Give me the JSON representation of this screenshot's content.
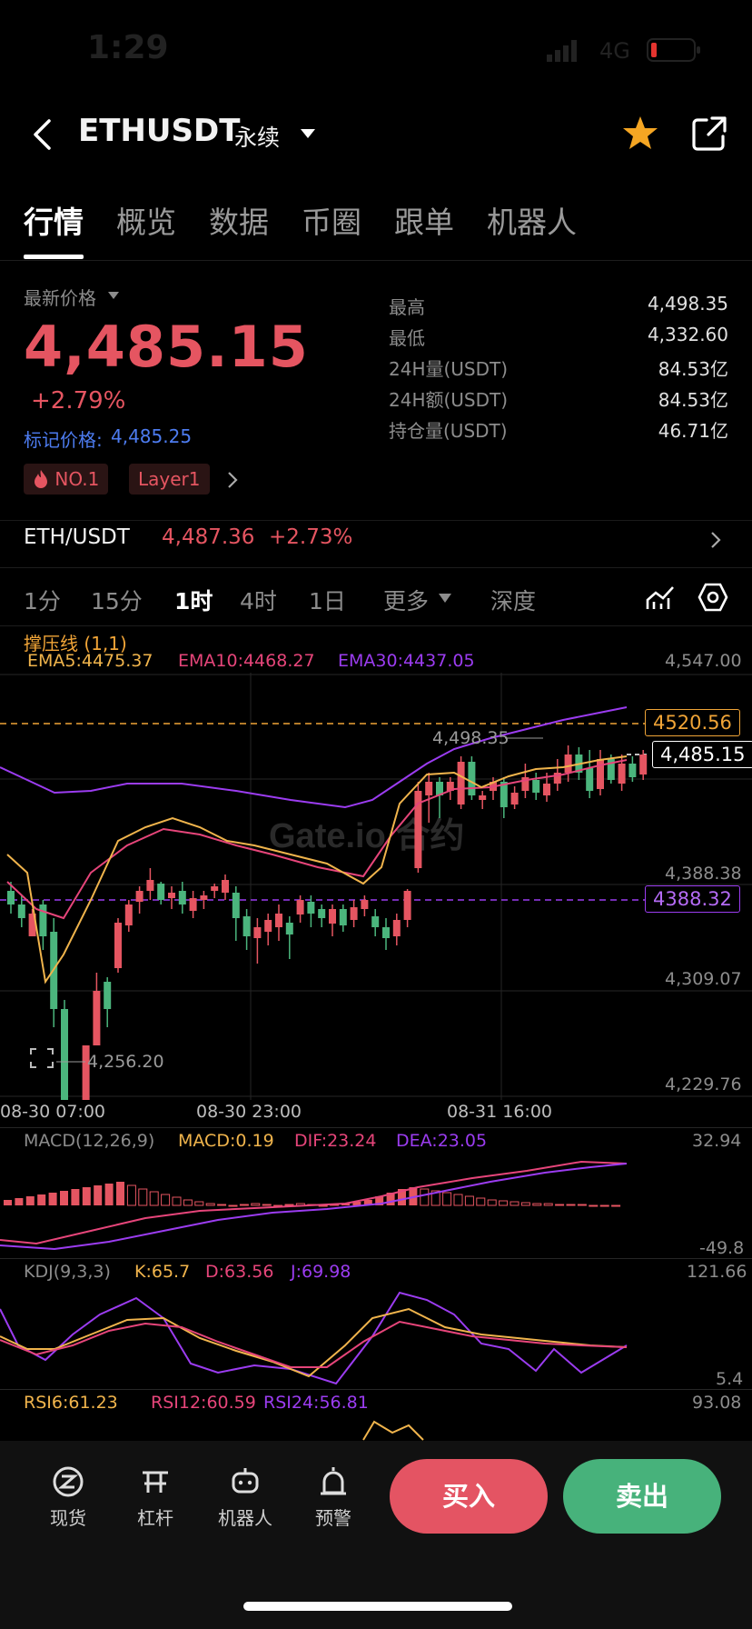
{
  "status": {
    "time": "1:29",
    "network": "4G"
  },
  "header": {
    "pair": "ETHUSDT",
    "contract_type": "永续"
  },
  "tabs": [
    "行情",
    "概览",
    "数据",
    "币圈",
    "跟单",
    "机器人"
  ],
  "price": {
    "label": "最新价格",
    "last": "4,485.15",
    "change": "+2.79%",
    "mark_label": "标记价格:",
    "mark_value": "4,485.25"
  },
  "stats": [
    {
      "label": "最高",
      "value": "4,498.35"
    },
    {
      "label": "最低",
      "value": "4,332.60"
    },
    {
      "label": "24H量(USDT)",
      "value": "84.53亿"
    },
    {
      "label": "24H额(USDT)",
      "value": "84.53亿"
    },
    {
      "label": "持仓量(USDT)",
      "value": "46.71亿"
    }
  ],
  "tags": [
    "NO.1",
    "Layer1"
  ],
  "spot": {
    "pair": "ETH/USDT",
    "price": "4,487.36",
    "change": "+2.73%"
  },
  "timeframes": [
    "1分",
    "15分",
    "1时",
    "4时",
    "1日",
    "更多",
    "深度"
  ],
  "chart": {
    "indicator_name": "撑压线 (1,1)",
    "ema5": "EMA5:4475.37",
    "ema10": "EMA10:4468.27",
    "ema30": "EMA30:4437.05",
    "y_ticks": [
      "4,547.00",
      "4,388.38",
      "4,309.07",
      "4,229.76"
    ],
    "resistance": "4520.56",
    "support": "4388.32",
    "current": "4,485.15",
    "high_label": "4,498.35",
    "low_label": "4,256.20",
    "x_ticks": [
      "08-30 07:00",
      "08-30 23:00",
      "08-31 16:00"
    ],
    "watermark": "Gate.io 合约"
  },
  "macd": {
    "title": "MACD(12,26,9)",
    "macd": "MACD:0.19",
    "dif": "DIF:23.24",
    "dea": "DEA:23.05",
    "top": "32.94",
    "bottom": "-49.8"
  },
  "kdj": {
    "title": "KDJ(9,3,3)",
    "k": "K:65.7",
    "d": "D:63.56",
    "j": "J:69.98",
    "top": "121.66",
    "bottom": "5.4"
  },
  "rsi": {
    "rsi6": "RSI6:61.23",
    "rsi12": "RSI12:60.59",
    "rsi24": "RSI24:56.81",
    "top": "93.08"
  },
  "bottom_nav": [
    "现货",
    "杠杆",
    "机器人",
    "预警"
  ],
  "actions": {
    "buy": "买入",
    "sell": "卖出"
  },
  "colors": {
    "up": "#e55561",
    "down": "#4bb57d",
    "ema5": "#f0b44c",
    "ema10": "#e6457a",
    "ema30": "#9b3cf0"
  }
}
